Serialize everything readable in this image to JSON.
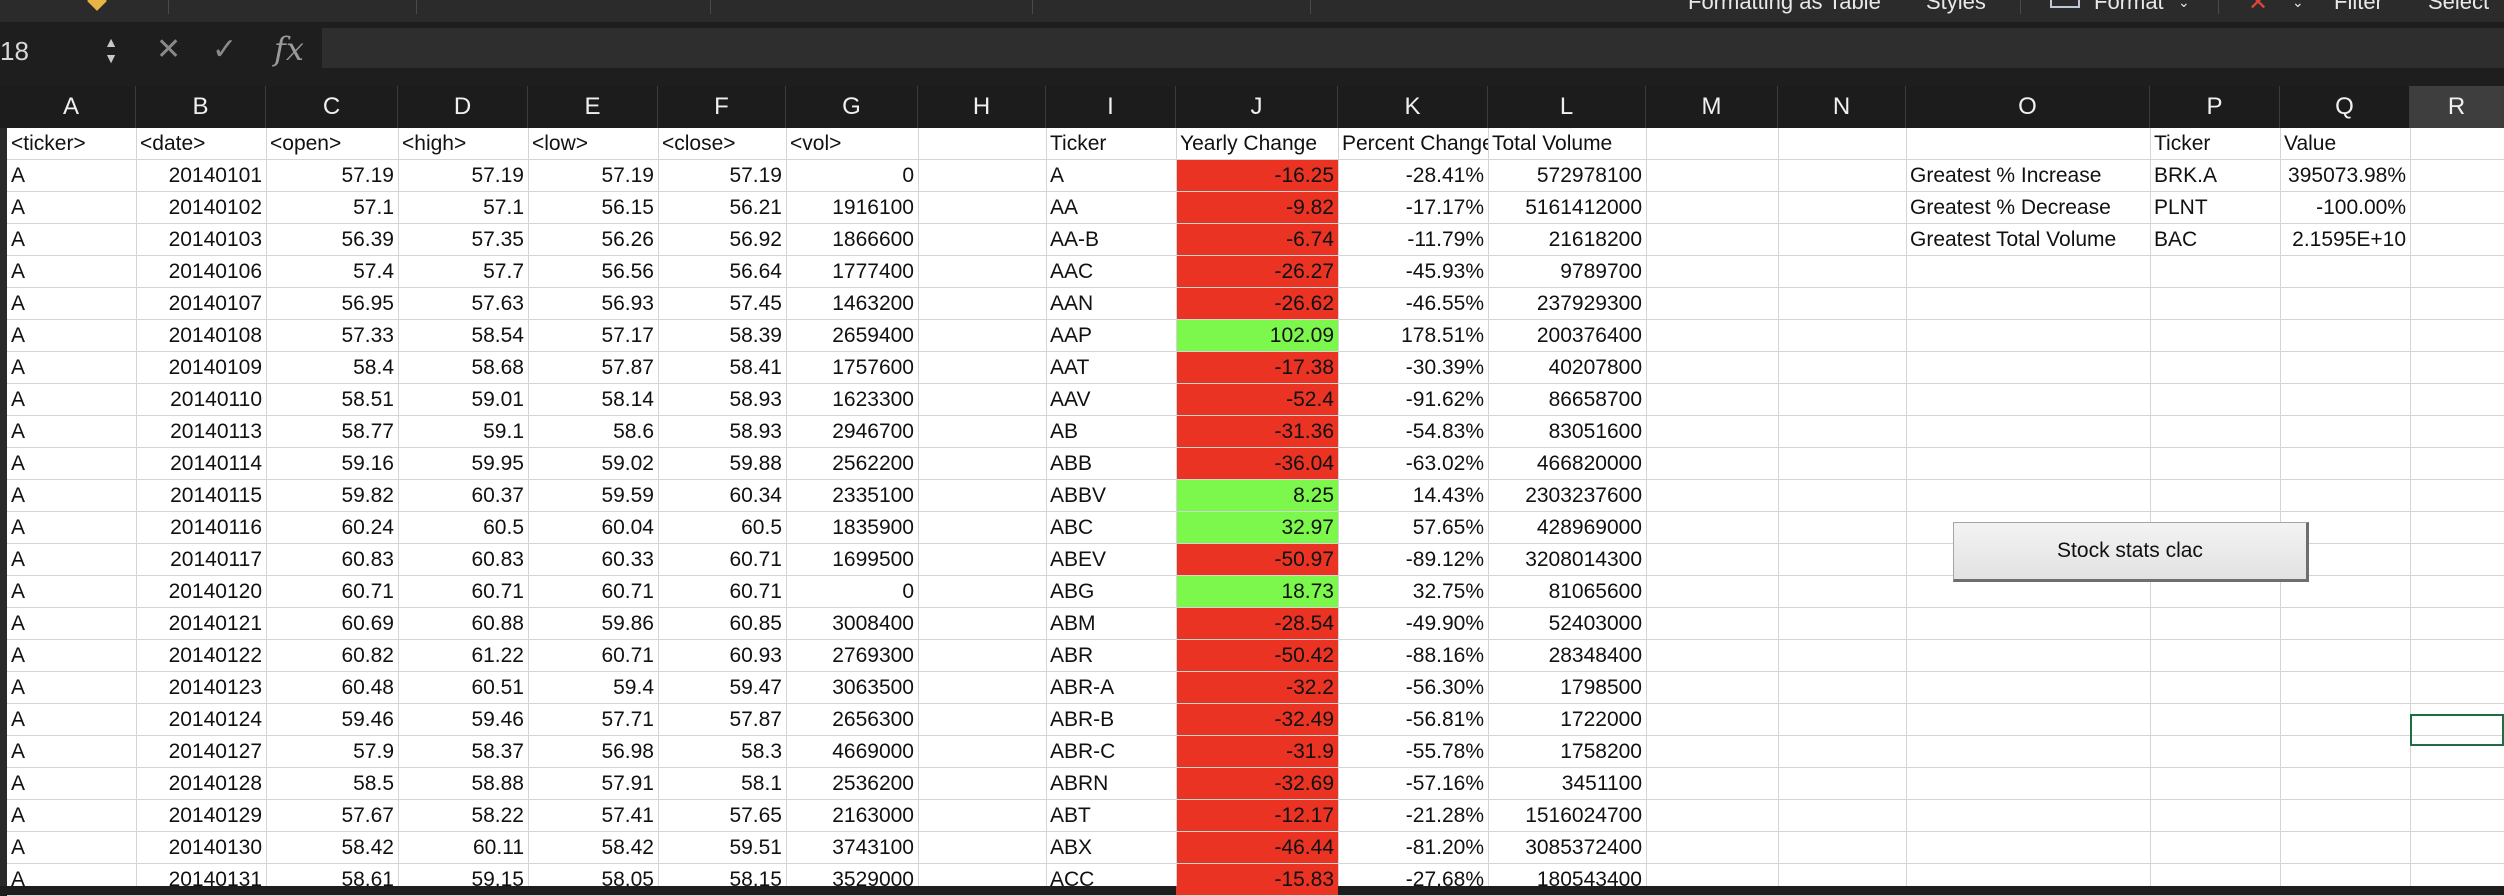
{
  "toolbar": {
    "formatting_as_table": "Formatting  as Table",
    "styles": "Styles",
    "format": "Format",
    "filter": "Filter",
    "select": "Select"
  },
  "formula_bar": {
    "name_box": "18",
    "fx": "fx",
    "cancel": "✕",
    "confirm": "✓",
    "value": ""
  },
  "columns": [
    "A",
    "B",
    "C",
    "D",
    "E",
    "F",
    "G",
    "H",
    "I",
    "J",
    "K",
    "L",
    "M",
    "N",
    "O",
    "P",
    "Q",
    "R"
  ],
  "selected_column": "R",
  "headers": [
    "<ticker>",
    "<date>",
    "<open>",
    "<high>",
    "<low>",
    "<close>",
    "<vol>"
  ],
  "raw_rows": [
    [
      "A",
      "20140101",
      "57.19",
      "57.19",
      "57.19",
      "57.19",
      "0"
    ],
    [
      "A",
      "20140102",
      "57.1",
      "57.1",
      "56.15",
      "56.21",
      "1916100"
    ],
    [
      "A",
      "20140103",
      "56.39",
      "57.35",
      "56.26",
      "56.92",
      "1866600"
    ],
    [
      "A",
      "20140106",
      "57.4",
      "57.7",
      "56.56",
      "56.64",
      "1777400"
    ],
    [
      "A",
      "20140107",
      "56.95",
      "57.63",
      "56.93",
      "57.45",
      "1463200"
    ],
    [
      "A",
      "20140108",
      "57.33",
      "58.54",
      "57.17",
      "58.39",
      "2659400"
    ],
    [
      "A",
      "20140109",
      "58.4",
      "58.68",
      "57.87",
      "58.41",
      "1757600"
    ],
    [
      "A",
      "20140110",
      "58.51",
      "59.01",
      "58.14",
      "58.93",
      "1623300"
    ],
    [
      "A",
      "20140113",
      "58.77",
      "59.1",
      "58.6",
      "58.93",
      "2946700"
    ],
    [
      "A",
      "20140114",
      "59.16",
      "59.95",
      "59.02",
      "59.88",
      "2562200"
    ],
    [
      "A",
      "20140115",
      "59.82",
      "60.37",
      "59.59",
      "60.34",
      "2335100"
    ],
    [
      "A",
      "20140116",
      "60.24",
      "60.5",
      "60.04",
      "60.5",
      "1835900"
    ],
    [
      "A",
      "20140117",
      "60.83",
      "60.83",
      "60.33",
      "60.71",
      "1699500"
    ],
    [
      "A",
      "20140120",
      "60.71",
      "60.71",
      "60.71",
      "60.71",
      "0"
    ],
    [
      "A",
      "20140121",
      "60.69",
      "60.88",
      "59.86",
      "60.85",
      "3008400"
    ],
    [
      "A",
      "20140122",
      "60.82",
      "61.22",
      "60.71",
      "60.93",
      "2769300"
    ],
    [
      "A",
      "20140123",
      "60.48",
      "60.51",
      "59.4",
      "59.47",
      "3063500"
    ],
    [
      "A",
      "20140124",
      "59.46",
      "59.46",
      "57.71",
      "57.87",
      "2656300"
    ],
    [
      "A",
      "20140127",
      "57.9",
      "58.37",
      "56.98",
      "58.3",
      "4669000"
    ],
    [
      "A",
      "20140128",
      "58.5",
      "58.88",
      "57.91",
      "58.1",
      "2536200"
    ],
    [
      "A",
      "20140129",
      "57.67",
      "58.22",
      "57.41",
      "57.65",
      "2163000"
    ],
    [
      "A",
      "20140130",
      "58.42",
      "60.11",
      "58.42",
      "59.51",
      "3743100"
    ],
    [
      "A",
      "20140131",
      "58.61",
      "59.15",
      "58.05",
      "58.15",
      "3529000"
    ]
  ],
  "summary_headers": [
    "Ticker",
    "Yearly Change",
    "Percent Change",
    "Total Volume"
  ],
  "summary_rows": [
    {
      "ticker": "A",
      "change": "-16.25",
      "pct": "-28.41%",
      "vol": "572978100",
      "pos": false
    },
    {
      "ticker": "AA",
      "change": "-9.82",
      "pct": "-17.17%",
      "vol": "5161412000",
      "pos": false
    },
    {
      "ticker": "AA-B",
      "change": "-6.74",
      "pct": "-11.79%",
      "vol": "21618200",
      "pos": false
    },
    {
      "ticker": "AAC",
      "change": "-26.27",
      "pct": "-45.93%",
      "vol": "9789700",
      "pos": false
    },
    {
      "ticker": "AAN",
      "change": "-26.62",
      "pct": "-46.55%",
      "vol": "237929300",
      "pos": false
    },
    {
      "ticker": "AAP",
      "change": "102.09",
      "pct": "178.51%",
      "vol": "200376400",
      "pos": true
    },
    {
      "ticker": "AAT",
      "change": "-17.38",
      "pct": "-30.39%",
      "vol": "40207800",
      "pos": false
    },
    {
      "ticker": "AAV",
      "change": "-52.4",
      "pct": "-91.62%",
      "vol": "86658700",
      "pos": false
    },
    {
      "ticker": "AB",
      "change": "-31.36",
      "pct": "-54.83%",
      "vol": "83051600",
      "pos": false
    },
    {
      "ticker": "ABB",
      "change": "-36.04",
      "pct": "-63.02%",
      "vol": "466820000",
      "pos": false
    },
    {
      "ticker": "ABBV",
      "change": "8.25",
      "pct": "14.43%",
      "vol": "2303237600",
      "pos": true
    },
    {
      "ticker": "ABC",
      "change": "32.97",
      "pct": "57.65%",
      "vol": "428969000",
      "pos": true
    },
    {
      "ticker": "ABEV",
      "change": "-50.97",
      "pct": "-89.12%",
      "vol": "3208014300",
      "pos": false
    },
    {
      "ticker": "ABG",
      "change": "18.73",
      "pct": "32.75%",
      "vol": "81065600",
      "pos": true
    },
    {
      "ticker": "ABM",
      "change": "-28.54",
      "pct": "-49.90%",
      "vol": "52403000",
      "pos": false
    },
    {
      "ticker": "ABR",
      "change": "-50.42",
      "pct": "-88.16%",
      "vol": "28348400",
      "pos": false
    },
    {
      "ticker": "ABR-A",
      "change": "-32.2",
      "pct": "-56.30%",
      "vol": "1798500",
      "pos": false
    },
    {
      "ticker": "ABR-B",
      "change": "-32.49",
      "pct": "-56.81%",
      "vol": "1722000",
      "pos": false
    },
    {
      "ticker": "ABR-C",
      "change": "-31.9",
      "pct": "-55.78%",
      "vol": "1758200",
      "pos": false
    },
    {
      "ticker": "ABRN",
      "change": "-32.69",
      "pct": "-57.16%",
      "vol": "3451100",
      "pos": false
    },
    {
      "ticker": "ABT",
      "change": "-12.17",
      "pct": "-21.28%",
      "vol": "1516024700",
      "pos": false
    },
    {
      "ticker": "ABX",
      "change": "-46.44",
      "pct": "-81.20%",
      "vol": "3085372400",
      "pos": false
    },
    {
      "ticker": "ACC",
      "change": "-15.83",
      "pct": "-27.68%",
      "vol": "180543400",
      "pos": false
    }
  ],
  "greatest": {
    "headers": [
      "Ticker",
      "Value"
    ],
    "rows": [
      {
        "label": "Greatest % Increase",
        "ticker": "BRK.A",
        "value": "395073.98%"
      },
      {
        "label": "Greatest % Decrease",
        "ticker": "PLNT",
        "value": "-100.00%"
      },
      {
        "label": "Greatest Total Volume",
        "ticker": "BAC",
        "value": "2.1595E+10"
      }
    ]
  },
  "macro_button": "Stock stats clac",
  "colors": {
    "positive": "#7cf74c",
    "negative": "#ea3323",
    "selection": "#1f6e43"
  }
}
